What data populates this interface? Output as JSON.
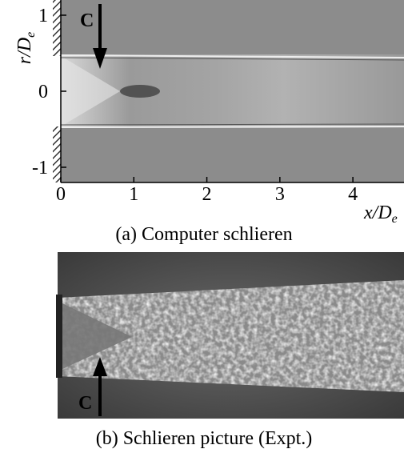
{
  "panel_a": {
    "caption": "(a) Computer schlieren",
    "x_label": {
      "main": "x/D",
      "sub": "e"
    },
    "y_label": {
      "main": "r/D",
      "sub": "e"
    },
    "xlim": [
      0,
      4.7
    ],
    "ylim": [
      -1.2,
      1.2
    ],
    "xticks": [
      0,
      1,
      2,
      3,
      4
    ],
    "yticks": [
      -1,
      0,
      1
    ],
    "annotation": "C"
  },
  "panel_b": {
    "caption": "(b) Schlieren picture (Expt.)",
    "annotation": "C"
  }
}
